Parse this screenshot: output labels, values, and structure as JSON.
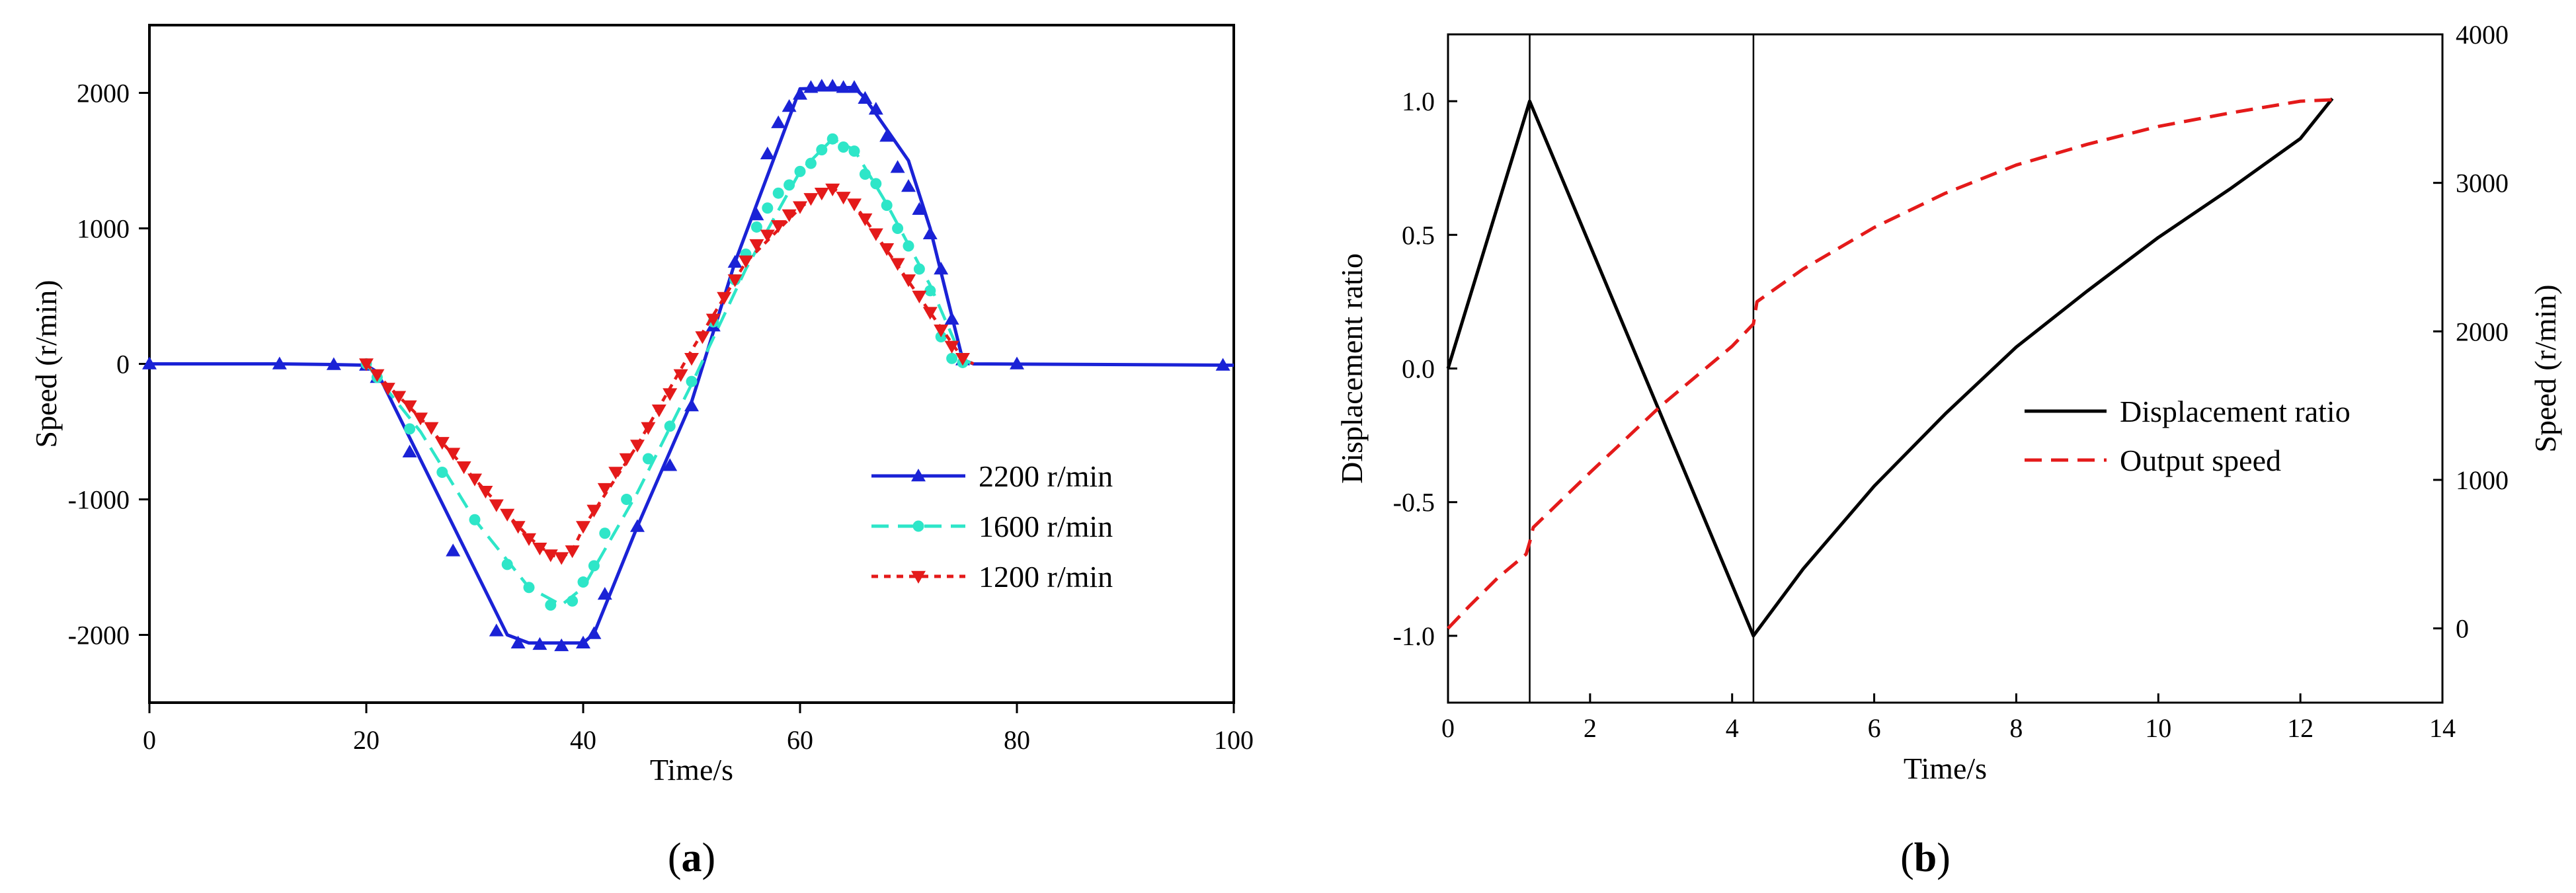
{
  "chart_data": [
    {
      "type": "line",
      "panel": "a",
      "caption_letter": "a",
      "xlabel": "Time/s",
      "ylabel": "Speed (r/min)",
      "xlim": [
        0,
        100
      ],
      "ylim": [
        -2500,
        2500
      ],
      "xticks": [
        0,
        20,
        40,
        60,
        80,
        100
      ],
      "yticks": [
        -2000,
        -1000,
        0,
        1000,
        2000
      ],
      "legend_position": "lower-right",
      "series": [
        {
          "name": "2200 r/min",
          "color": "#1a22d6",
          "dash": "solid",
          "marker": "triangle-up",
          "line": [
            [
              0,
              0
            ],
            [
              12,
              0
            ],
            [
              17,
              -5
            ],
            [
              20,
              -10
            ],
            [
              21,
              -60
            ],
            [
              33,
              -2000
            ],
            [
              35,
              -2060
            ],
            [
              40,
              -2060
            ],
            [
              41,
              -1990
            ],
            [
              45,
              -1200
            ],
            [
              50,
              -280
            ],
            [
              54,
              750
            ],
            [
              60,
              2030
            ],
            [
              65,
              2040
            ],
            [
              66,
              1960
            ],
            [
              70,
              1500
            ],
            [
              72,
              1000
            ],
            [
              75,
              30
            ],
            [
              76,
              0
            ],
            [
              100,
              -10
            ]
          ],
          "markers": [
            [
              0,
              0
            ],
            [
              12,
              0
            ],
            [
              17,
              -5
            ],
            [
              20,
              -10
            ],
            [
              21,
              -100
            ],
            [
              24,
              -650
            ],
            [
              28,
              -1380
            ],
            [
              32,
              -1970
            ],
            [
              34,
              -2060
            ],
            [
              36,
              -2070
            ],
            [
              38,
              -2080
            ],
            [
              40,
              -2060
            ],
            [
              41,
              -1990
            ],
            [
              42,
              -1700
            ],
            [
              45,
              -1200
            ],
            [
              48,
              -750
            ],
            [
              50,
              -310
            ],
            [
              52,
              280
            ],
            [
              54,
              750
            ],
            [
              56,
              1100
            ],
            [
              57,
              1550
            ],
            [
              58,
              1780
            ],
            [
              59,
              1900
            ],
            [
              60,
              1990
            ],
            [
              61,
              2040
            ],
            [
              62,
              2050
            ],
            [
              63,
              2050
            ],
            [
              64,
              2040
            ],
            [
              65,
              2040
            ],
            [
              66,
              1960
            ],
            [
              67,
              1880
            ],
            [
              68,
              1680
            ],
            [
              69,
              1450
            ],
            [
              70,
              1310
            ],
            [
              71,
              1140
            ],
            [
              72,
              960
            ],
            [
              73,
              700
            ],
            [
              74,
              330
            ],
            [
              75,
              30
            ],
            [
              80,
              0
            ],
            [
              99,
              -10
            ]
          ]
        },
        {
          "name": "1600 r/min",
          "color": "#2ee6c8",
          "dash": "dashed",
          "marker": "circle",
          "line": [
            [
              20,
              0
            ],
            [
              25,
              -500
            ],
            [
              30,
              -1150
            ],
            [
              35,
              -1650
            ],
            [
              38,
              -1780
            ],
            [
              40,
              -1650
            ],
            [
              45,
              -950
            ],
            [
              50,
              -150
            ],
            [
              55,
              700
            ],
            [
              60,
              1420
            ],
            [
              63,
              1660
            ],
            [
              65,
              1580
            ],
            [
              68,
              1180
            ],
            [
              72,
              580
            ],
            [
              75,
              30
            ],
            [
              76,
              0
            ]
          ],
          "markers": [
            [
              20,
              0
            ],
            [
              21,
              -100
            ],
            [
              24,
              -480
            ],
            [
              27,
              -800
            ],
            [
              30,
              -1150
            ],
            [
              33,
              -1480
            ],
            [
              35,
              -1650
            ],
            [
              37,
              -1780
            ],
            [
              39,
              -1750
            ],
            [
              40,
              -1610
            ],
            [
              41,
              -1490
            ],
            [
              42,
              -1250
            ],
            [
              44,
              -1000
            ],
            [
              46,
              -700
            ],
            [
              48,
              -460
            ],
            [
              50,
              -130
            ],
            [
              52,
              310
            ],
            [
              54,
              620
            ],
            [
              55,
              810
            ],
            [
              56,
              1010
            ],
            [
              57,
              1150
            ],
            [
              58,
              1260
            ],
            [
              59,
              1320
            ],
            [
              60,
              1420
            ],
            [
              61,
              1480
            ],
            [
              62,
              1580
            ],
            [
              63,
              1660
            ],
            [
              64,
              1600
            ],
            [
              65,
              1570
            ],
            [
              66,
              1400
            ],
            [
              67,
              1330
            ],
            [
              68,
              1170
            ],
            [
              69,
              1000
            ],
            [
              70,
              870
            ],
            [
              71,
              700
            ],
            [
              72,
              540
            ],
            [
              73,
              200
            ],
            [
              74,
              40
            ],
            [
              75,
              10
            ]
          ]
        },
        {
          "name": "1200 r/min",
          "color": "#e41a1a",
          "dash": "dotted",
          "marker": "triangle-down",
          "line": [
            [
              20,
              0
            ],
            [
              25,
              -400
            ],
            [
              30,
              -850
            ],
            [
              35,
              -1280
            ],
            [
              37,
              -1410
            ],
            [
              38,
              -1430
            ],
            [
              39,
              -1380
            ],
            [
              40,
              -1210
            ],
            [
              45,
              -600
            ],
            [
              50,
              100
            ],
            [
              55,
              750
            ],
            [
              60,
              1150
            ],
            [
              62,
              1280
            ],
            [
              63,
              1300
            ],
            [
              65,
              1180
            ],
            [
              68,
              840
            ],
            [
              72,
              380
            ],
            [
              75,
              40
            ],
            [
              76,
              0
            ]
          ],
          "markers": [
            [
              20,
              0
            ],
            [
              21,
              -80
            ],
            [
              22,
              -180
            ],
            [
              23,
              -240
            ],
            [
              24,
              -310
            ],
            [
              25,
              -400
            ],
            [
              26,
              -470
            ],
            [
              27,
              -580
            ],
            [
              28,
              -660
            ],
            [
              29,
              -760
            ],
            [
              30,
              -850
            ],
            [
              31,
              -940
            ],
            [
              32,
              -1040
            ],
            [
              33,
              -1110
            ],
            [
              34,
              -1200
            ],
            [
              35,
              -1290
            ],
            [
              36,
              -1360
            ],
            [
              37,
              -1410
            ],
            [
              38,
              -1430
            ],
            [
              39,
              -1380
            ],
            [
              40,
              -1200
            ],
            [
              41,
              -1080
            ],
            [
              42,
              -920
            ],
            [
              43,
              -800
            ],
            [
              44,
              -700
            ],
            [
              45,
              -600
            ],
            [
              46,
              -470
            ],
            [
              47,
              -340
            ],
            [
              48,
              -220
            ],
            [
              49,
              -80
            ],
            [
              50,
              40
            ],
            [
              51,
              200
            ],
            [
              52,
              330
            ],
            [
              53,
              490
            ],
            [
              54,
              620
            ],
            [
              55,
              760
            ],
            [
              56,
              880
            ],
            [
              57,
              950
            ],
            [
              58,
              1020
            ],
            [
              59,
              1100
            ],
            [
              60,
              1160
            ],
            [
              61,
              1220
            ],
            [
              62,
              1260
            ],
            [
              63,
              1290
            ],
            [
              64,
              1230
            ],
            [
              65,
              1180
            ],
            [
              66,
              1070
            ],
            [
              67,
              960
            ],
            [
              68,
              850
            ],
            [
              69,
              740
            ],
            [
              70,
              620
            ],
            [
              71,
              500
            ],
            [
              72,
              380
            ],
            [
              73,
              250
            ],
            [
              74,
              130
            ],
            [
              75,
              40
            ]
          ]
        }
      ]
    },
    {
      "type": "line",
      "panel": "b",
      "caption_letter": "b",
      "xlabel": "Time/s",
      "ylabel_left": "Displacement ratio",
      "ylabel_right": "Speed (r/min)",
      "xlim": [
        0,
        14
      ],
      "ylim_left": [
        -1.25,
        1.25
      ],
      "ylim_right": [
        -500,
        4000
      ],
      "xticks": [
        0,
        2,
        4,
        6,
        8,
        10,
        12,
        14
      ],
      "yticks_left": [
        "-1.0",
        "-0.5",
        "0.0",
        "0.5",
        "1.0"
      ],
      "yticks_right": [
        0,
        1000,
        2000,
        3000,
        4000
      ],
      "vertical_lines": [
        1.15,
        4.3
      ],
      "legend_position": "center-right",
      "series": [
        {
          "name": "Displacement ratio",
          "axis": "left",
          "color": "#000000",
          "dash": "solid",
          "points": [
            [
              0,
              0
            ],
            [
              1.15,
              1.0
            ],
            [
              4.3,
              -1.0
            ],
            [
              5.0,
              -0.75
            ],
            [
              6.0,
              -0.44
            ],
            [
              7.0,
              -0.17
            ],
            [
              8.0,
              0.08
            ],
            [
              9.0,
              0.29
            ],
            [
              10.0,
              0.49
            ],
            [
              11.0,
              0.67
            ],
            [
              12.0,
              0.86
            ],
            [
              12.45,
              1.01
            ]
          ]
        },
        {
          "name": "Output speed",
          "axis": "right",
          "color": "#e41a1a",
          "dash": "dashed",
          "points": [
            [
              0,
              0
            ],
            [
              0.3,
              150
            ],
            [
              0.7,
              340
            ],
            [
              1.1,
              500
            ],
            [
              1.15,
              580
            ],
            [
              1.2,
              680
            ],
            [
              2.0,
              1050
            ],
            [
              3.0,
              1500
            ],
            [
              4.0,
              1900
            ],
            [
              4.3,
              2050
            ],
            [
              4.35,
              2200
            ],
            [
              5.0,
              2420
            ],
            [
              6.0,
              2700
            ],
            [
              7.0,
              2930
            ],
            [
              8.0,
              3120
            ],
            [
              9.0,
              3260
            ],
            [
              10.0,
              3380
            ],
            [
              11.0,
              3470
            ],
            [
              12.0,
              3550
            ],
            [
              12.45,
              3560
            ]
          ]
        }
      ]
    }
  ]
}
